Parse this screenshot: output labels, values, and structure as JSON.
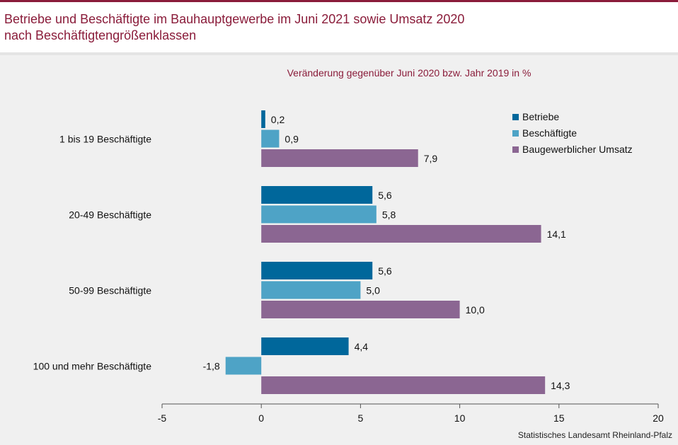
{
  "title_line1": "Betriebe und Beschäftigte im Bauhauptgewerbe im Juni 2021 sowie Umsatz 2020",
  "title_line2": "nach Beschäftigtengrößenklassen",
  "source": "Statistisches Landesamt Rheinland-Pfalz",
  "colors": {
    "title": "#8a1c3a",
    "betriebe": "#00679b",
    "beschaeftigte": "#4ea3c6",
    "umsatz": "#8b6692"
  },
  "chart_data": {
    "type": "bar",
    "orientation": "horizontal",
    "title": "Veränderung gegenüber Juni 2020 bzw. Jahr 2019 in %",
    "categories": [
      "1 bis 19 Beschäftigte",
      "20-49 Beschäftigte",
      "50-99 Beschäftigte",
      "100 und mehr Beschäftigte"
    ],
    "series": [
      {
        "name": "Betriebe",
        "values": [
          0.2,
          5.6,
          5.6,
          4.4
        ],
        "labels": [
          "0,2",
          "5,6",
          "5,6",
          "4,4"
        ]
      },
      {
        "name": "Beschäftigte",
        "values": [
          0.9,
          5.8,
          5.0,
          -1.8
        ],
        "labels": [
          "0,9",
          "5,8",
          "5,0",
          "-1,8"
        ]
      },
      {
        "name": "Baugewerblicher Umsatz",
        "values": [
          7.9,
          14.1,
          10.0,
          14.3
        ],
        "labels": [
          "7,9",
          "14,1",
          "10,0",
          "14,3"
        ]
      }
    ],
    "xlim": [
      -5,
      20
    ],
    "xticks": [
      -5,
      0,
      5,
      10,
      15,
      20
    ],
    "legend": "top-right",
    "grid": false
  }
}
